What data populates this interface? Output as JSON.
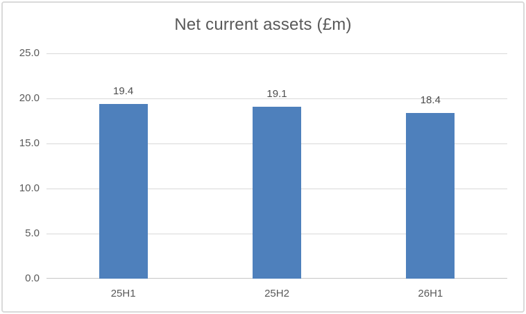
{
  "frame": {
    "background": "#FFFFFF",
    "border_color": "#D9D9D9"
  },
  "chart_data": {
    "type": "bar",
    "title": "Net current assets (£m)",
    "categories": [
      "25H1",
      "25H2",
      "26H1"
    ],
    "values": [
      19.4,
      19.1,
      18.4
    ],
    "value_labels": [
      "19.4",
      "19.1",
      "18.4"
    ],
    "xlabel": "",
    "ylabel": "",
    "ylim": [
      0,
      25
    ],
    "yticks": [
      {
        "value": 0,
        "label": "0.0"
      },
      {
        "value": 5,
        "label": "5.0"
      },
      {
        "value": 10,
        "label": "10.0"
      },
      {
        "value": 15,
        "label": "15.0"
      },
      {
        "value": 20,
        "label": "20.0"
      },
      {
        "value": 25,
        "label": "25.0"
      }
    ],
    "grid": true,
    "legend_position": "none",
    "colors": {
      "bar": "#4E80BC",
      "gridline": "#D9D9D9",
      "axis_line": "#C6C6C6",
      "title_text": "#595959",
      "tick_text": "#595959",
      "data_label_text": "#4d4d4d"
    }
  }
}
